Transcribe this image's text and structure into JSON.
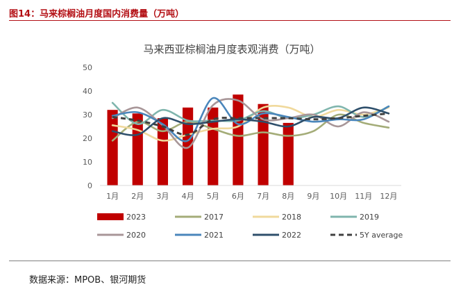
{
  "figure": {
    "title": "图14：马来棕榈油月度国内消费量（万吨）",
    "source": "数据来源：MPOB、银河期货"
  },
  "colors": {
    "2023": "#c00000",
    "2017": "#a4ac78",
    "2018": "#f0d99c",
    "2019": "#7fb5ad",
    "2020": "#a89698",
    "2021": "#4a86bb",
    "2022": "#2e4f6b",
    "5Y average": "#404040"
  },
  "chart_data": {
    "type": "bar+line",
    "title": "马来西亚棕榈油月度表观消费（万吨）",
    "categories": [
      "1月",
      "2月",
      "3月",
      "4月",
      "5月",
      "6月",
      "7月",
      "8月",
      "9月",
      "10月",
      "11月",
      "12月"
    ],
    "ylim": [
      0,
      50
    ],
    "yticks": [
      0,
      10,
      20,
      30,
      40,
      50
    ],
    "legend_position": "bottom",
    "bar_series": {
      "name": "2023",
      "values": [
        32,
        30.5,
        28.5,
        33,
        33,
        38.5,
        34.5,
        26.5,
        null,
        null,
        null,
        null
      ]
    },
    "series": [
      {
        "name": "2017",
        "style": "solid",
        "values": [
          19,
          27,
          23,
          27,
          24,
          21,
          22.5,
          21,
          23,
          30,
          26.5,
          24.5
        ]
      },
      {
        "name": "2018",
        "style": "solid",
        "values": [
          25.5,
          23.5,
          19,
          21.5,
          24,
          25,
          33,
          33,
          29,
          32,
          30,
          33
        ]
      },
      {
        "name": "2019",
        "style": "solid",
        "values": [
          35,
          26,
          32,
          27.5,
          27.5,
          27.5,
          31.5,
          28.5,
          30,
          33.5,
          29,
          33.5
        ]
      },
      {
        "name": "2020",
        "style": "solid",
        "values": [
          28.5,
          33,
          25.5,
          16,
          34,
          36,
          28,
          28.5,
          30,
          25,
          31,
          27
        ]
      },
      {
        "name": "2021",
        "style": "solid",
        "values": [
          29.5,
          31,
          26,
          19,
          37,
          26,
          30.5,
          29,
          27,
          28,
          28,
          33.5
        ]
      },
      {
        "name": "2022",
        "style": "solid",
        "values": [
          23,
          21.5,
          28.5,
          26,
          27,
          28,
          27,
          25,
          29,
          28.5,
          33,
          30.5
        ]
      },
      {
        "name": "5Y average",
        "style": "dashed",
        "values": [
          29,
          27.5,
          25,
          21.5,
          28,
          28.5,
          28.5,
          28.5,
          28,
          28.5,
          29.5,
          30.5
        ]
      }
    ],
    "legend": [
      "2023",
      "2017",
      "2018",
      "2019",
      "2020",
      "2021",
      "2022",
      "5Y average"
    ]
  }
}
